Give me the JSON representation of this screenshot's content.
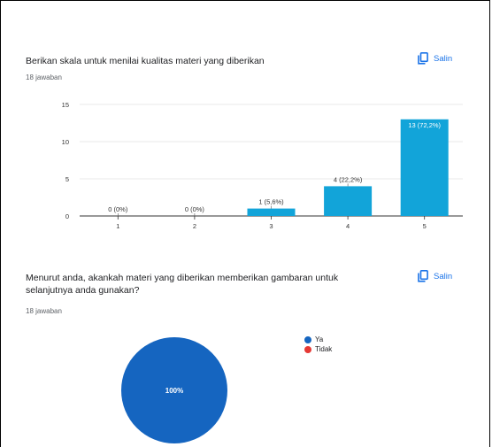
{
  "question1": {
    "title": "Berikan skala untuk menilai kualitas materi yang diberikan",
    "responses": "18 jawaban",
    "copy_label": "Salin"
  },
  "question2": {
    "title_line1": "Menurut anda, akankah materi yang diberikan memberikan gambaran untuk",
    "title_line2": "selanjutnya anda gunakan?",
    "responses": "18 jawaban",
    "copy_label": "Salin"
  },
  "chart_data": [
    {
      "type": "bar",
      "categories": [
        "1",
        "2",
        "3",
        "4",
        "5"
      ],
      "values": [
        0,
        0,
        1,
        4,
        13
      ],
      "labels": [
        "0 (0%)",
        "0 (0%)",
        "1 (5,6%)",
        "4 (22,2%)",
        "13 (72,2%)"
      ],
      "ylim": [
        0,
        15
      ],
      "yticks": [
        0,
        5,
        10,
        15
      ],
      "grid": true,
      "color": "#12a4d9"
    },
    {
      "type": "pie",
      "categories": [
        "Ya",
        "Tidak"
      ],
      "values": [
        18,
        0
      ],
      "slice_labels": [
        "100%"
      ],
      "colors": [
        "#1565c0",
        "#e53935"
      ],
      "legend": "right"
    }
  ],
  "icons": {
    "copy": "copy-icon"
  }
}
